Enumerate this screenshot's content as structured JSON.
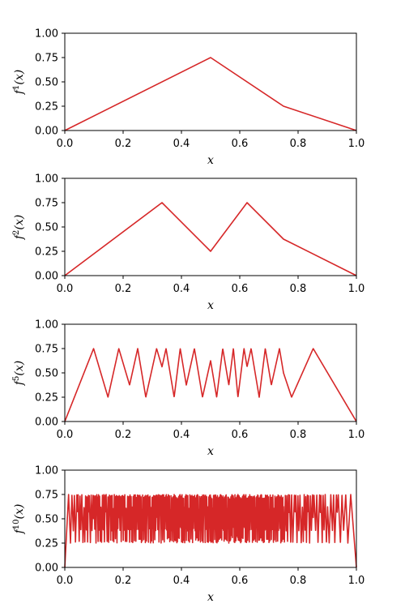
{
  "chart_data": [
    {
      "type": "line",
      "xlabel": "x",
      "ylabel": "f",
      "ylabel_sup": "1",
      "ylabel_tail": "(x)",
      "xlim": [
        0,
        1
      ],
      "ylim": [
        0,
        1
      ],
      "xticks": [
        "0.0",
        "0.2",
        "0.4",
        "0.6",
        "0.8",
        "1.0"
      ],
      "yticks": [
        "0.00",
        "0.25",
        "0.50",
        "0.75",
        "1.00"
      ],
      "grid": false,
      "color": "#d62728",
      "iterations": 1,
      "series": [
        {
          "x": [
            0,
            0.5,
            0.75,
            1
          ],
          "y": [
            0,
            0.75,
            0.25,
            0
          ]
        }
      ]
    },
    {
      "type": "line",
      "xlabel": "x",
      "ylabel": "f",
      "ylabel_sup": "2",
      "ylabel_tail": "(x)",
      "xlim": [
        0,
        1
      ],
      "ylim": [
        0,
        1
      ],
      "xticks": [
        "0.0",
        "0.2",
        "0.4",
        "0.6",
        "0.8",
        "1.0"
      ],
      "yticks": [
        "0.00",
        "0.25",
        "0.50",
        "0.75",
        "1.00"
      ],
      "grid": false,
      "color": "#d62728",
      "iterations": 2,
      "series": [
        {
          "x": [
            0,
            0.3333,
            0.5,
            0.625,
            0.75,
            1
          ],
          "y": [
            0,
            0.75,
            0.25,
            0.75,
            0.375,
            0
          ]
        }
      ]
    },
    {
      "type": "line",
      "xlabel": "x",
      "ylabel": "f",
      "ylabel_sup": "5",
      "ylabel_tail": "(x)",
      "xlim": [
        0,
        1
      ],
      "ylim": [
        0,
        1
      ],
      "xticks": [
        "0.0",
        "0.2",
        "0.4",
        "0.6",
        "0.8",
        "1.0"
      ],
      "yticks": [
        "0.00",
        "0.25",
        "0.50",
        "0.75",
        "1.00"
      ],
      "grid": false,
      "color": "#d62728",
      "iterations": 5
    },
    {
      "type": "line",
      "xlabel": "x",
      "ylabel": "f",
      "ylabel_sup": "10",
      "ylabel_tail": "(x)",
      "xlim": [
        0,
        1
      ],
      "ylim": [
        0,
        1
      ],
      "xticks": [
        "0.0",
        "0.2",
        "0.4",
        "0.6",
        "0.8",
        "1.0"
      ],
      "yticks": [
        "0.00",
        "0.25",
        "0.50",
        "0.75",
        "1.00"
      ],
      "grid": false,
      "color": "#d62728",
      "iterations": 10
    }
  ]
}
